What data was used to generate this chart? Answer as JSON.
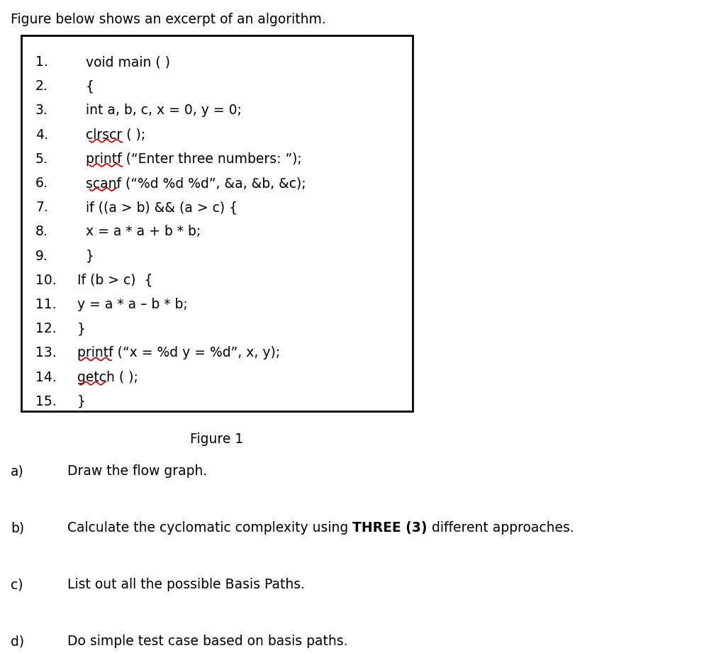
{
  "title": "Figure below shows an excerpt of an algorithm.",
  "title_fontsize": 13.5,
  "figure_label": "Figure 1",
  "figure_label_fontsize": 13.5,
  "code_lines": [
    {
      "num": "1.",
      "indent": "   ",
      "text": "void main ( )"
    },
    {
      "num": "2.",
      "indent": "   ",
      "text": "{"
    },
    {
      "num": "3.",
      "indent": "   ",
      "text": "int a, b, c, x = 0, y = 0;"
    },
    {
      "num": "4.",
      "indent": "   ",
      "text": "clrscr ( );",
      "underline": [
        0,
        6
      ]
    },
    {
      "num": "5.",
      "indent": "   ",
      "text": "printf (“Enter three numbers: ”);",
      "underline": [
        0,
        6
      ]
    },
    {
      "num": "6.",
      "indent": "   ",
      "text": "scanf (“%d %d %d”, &a, &b, &c);",
      "underline": [
        0,
        5
      ]
    },
    {
      "num": "7.",
      "indent": "   ",
      "text": "if ((a > b) && (a > c) {"
    },
    {
      "num": "8.",
      "indent": "   ",
      "text": "x = a * a + b * b;"
    },
    {
      "num": "9.",
      "indent": "   ",
      "text": "}"
    },
    {
      "num": "10.",
      "indent": " ",
      "text": "If (b > c)  {"
    },
    {
      "num": "11.",
      "indent": " ",
      "text": "y = a * a – b * b;"
    },
    {
      "num": "12.",
      "indent": " ",
      "text": "}"
    },
    {
      "num": "13.",
      "indent": " ",
      "text": "printf (“x = %d y = %d”, x, y);",
      "underline": [
        0,
        6
      ]
    },
    {
      "num": "14.",
      "indent": " ",
      "text": "getch ( );",
      "underline": [
        0,
        5
      ]
    },
    {
      "num": "15.",
      "indent": " ",
      "text": "}"
    }
  ],
  "underline_color": "#cc0000",
  "code_fontsize": 13.5,
  "question_fontsize": 13.5,
  "questions": [
    {
      "label": "a)",
      "parts": [
        {
          "text": "Draw the flow graph.",
          "bold": false
        }
      ]
    },
    {
      "label": "b)",
      "parts": [
        {
          "text": "Calculate the cyclomatic complexity using ",
          "bold": false
        },
        {
          "text": "THREE (3)",
          "bold": true
        },
        {
          "text": " different approaches.",
          "bold": false
        }
      ]
    },
    {
      "label": "c)",
      "parts": [
        {
          "text": "List out all the possible Basis Paths.",
          "bold": false
        }
      ]
    },
    {
      "label": "d)",
      "parts": [
        {
          "text": "Do simple test case based on basis paths.",
          "bold": false
        }
      ]
    }
  ],
  "bg_color": "#ffffff",
  "text_color": "#000000"
}
